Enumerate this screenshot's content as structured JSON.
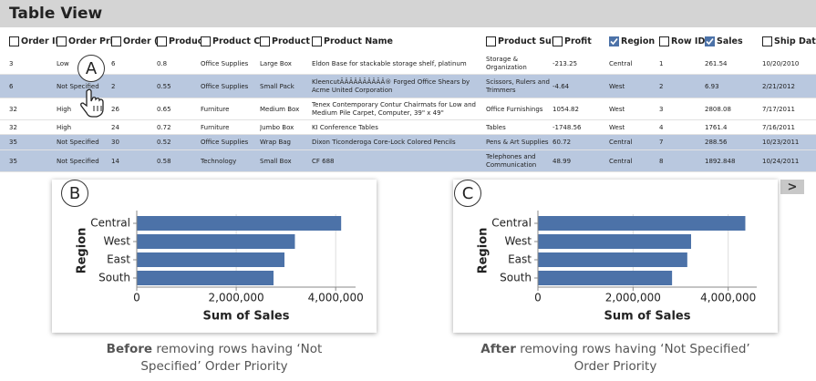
{
  "header": {
    "title": "Table View"
  },
  "table": {
    "columns": [
      {
        "label": "Order ID",
        "checked": false
      },
      {
        "label": "Order Pri",
        "checked": false
      },
      {
        "label": "Order (",
        "checked": false
      },
      {
        "label": "Produc",
        "checked": false
      },
      {
        "label": "Product C",
        "checked": false
      },
      {
        "label": "Product (",
        "checked": false
      },
      {
        "label": "Product Name",
        "checked": false
      },
      {
        "label": "Product Sub-",
        "checked": false
      },
      {
        "label": "Profit",
        "checked": false
      },
      {
        "label": "Region",
        "checked": true
      },
      {
        "label": "Row ID",
        "checked": false
      },
      {
        "label": "Sales",
        "checked": true
      },
      {
        "label": "Ship Date",
        "checked": false
      }
    ],
    "rows": [
      [
        "3",
        "Low",
        "6",
        "0.8",
        "Office Supplies",
        "Large Box",
        "Eldon Base for stackable storage shelf, platinum",
        "Storage & Organization",
        "-213.25",
        "Central",
        "1",
        "261.54",
        "10/20/2010"
      ],
      [
        "6",
        "Not Specified",
        "2",
        "0.55",
        "Office Supplies",
        "Small Pack",
        "KleencutÃÂÃÂÂÃÂÂÃÂ® Forged Office Shears by Acme United Corporation",
        "Scissors, Rulers and Trimmers",
        "-4.64",
        "West",
        "2",
        "6.93",
        "2/21/2012"
      ],
      [
        "32",
        "High",
        "26",
        "0.65",
        "Furniture",
        "Medium Box",
        "Tenex Contemporary Contur Chairmats for Low and Medium Pile Carpet, Computer, 39\" x 49\"",
        "Office Furnishings",
        "1054.82",
        "West",
        "3",
        "2808.08",
        "7/17/2011"
      ],
      [
        "32",
        "High",
        "24",
        "0.72",
        "Furniture",
        "Jumbo Box",
        "KI Conference Tables",
        "Tables",
        "-1748.56",
        "West",
        "4",
        "1761.4",
        "7/16/2011"
      ],
      [
        "35",
        "Not Specified",
        "30",
        "0.52",
        "Office Supplies",
        "Wrap Bag",
        "Dixon Ticonderoga Core-Lock Colored Pencils",
        "Pens & Art Supplies",
        "60.72",
        "Central",
        "7",
        "288.56",
        "10/23/2011"
      ],
      [
        "35",
        "Not Specified",
        "14",
        "0.58",
        "Technology",
        "Small Box",
        "CF 688",
        "Telephones and Communication",
        "48.99",
        "Central",
        "8",
        "1892.848",
        "10/24/2011"
      ]
    ],
    "selected_rows": [
      1,
      4,
      5
    ]
  },
  "callouts": [
    "A",
    "B",
    "C"
  ],
  "next_button": ">",
  "chart_data": [
    {
      "type": "bar",
      "orientation": "horizontal",
      "xlabel": "Sum of Sales",
      "ylabel": "Region",
      "categories": [
        "Central",
        "West",
        "East",
        "South"
      ],
      "values": [
        4110000,
        3180000,
        2970000,
        2750000
      ],
      "color": "#4c72a8",
      "xlim": [
        0,
        4400000
      ],
      "xticks": [
        0,
        {
          "value": 2000000,
          "label": "2,000,000"
        },
        {
          "value": 4000000,
          "label": "4,000,000"
        }
      ],
      "grid": true,
      "caption_bold": "Before",
      "caption": "removing rows having ‘Not Specified’ Order Priority"
    },
    {
      "type": "bar",
      "orientation": "horizontal",
      "xlabel": "Sum of Sales",
      "ylabel": "Region",
      "categories": [
        "Central",
        "West",
        "East",
        "South"
      ],
      "values": [
        4360000,
        3220000,
        3140000,
        2820000
      ],
      "color": "#4c72a8",
      "xlim": [
        0,
        4600000
      ],
      "xticks": [
        0,
        {
          "value": 2000000,
          "label": "2,000,000"
        },
        {
          "value": 4000000,
          "label": "4,000,000"
        }
      ],
      "grid": true,
      "caption_bold": "After",
      "caption": "removing rows having ‘Not Specified’ Order Priority"
    }
  ]
}
